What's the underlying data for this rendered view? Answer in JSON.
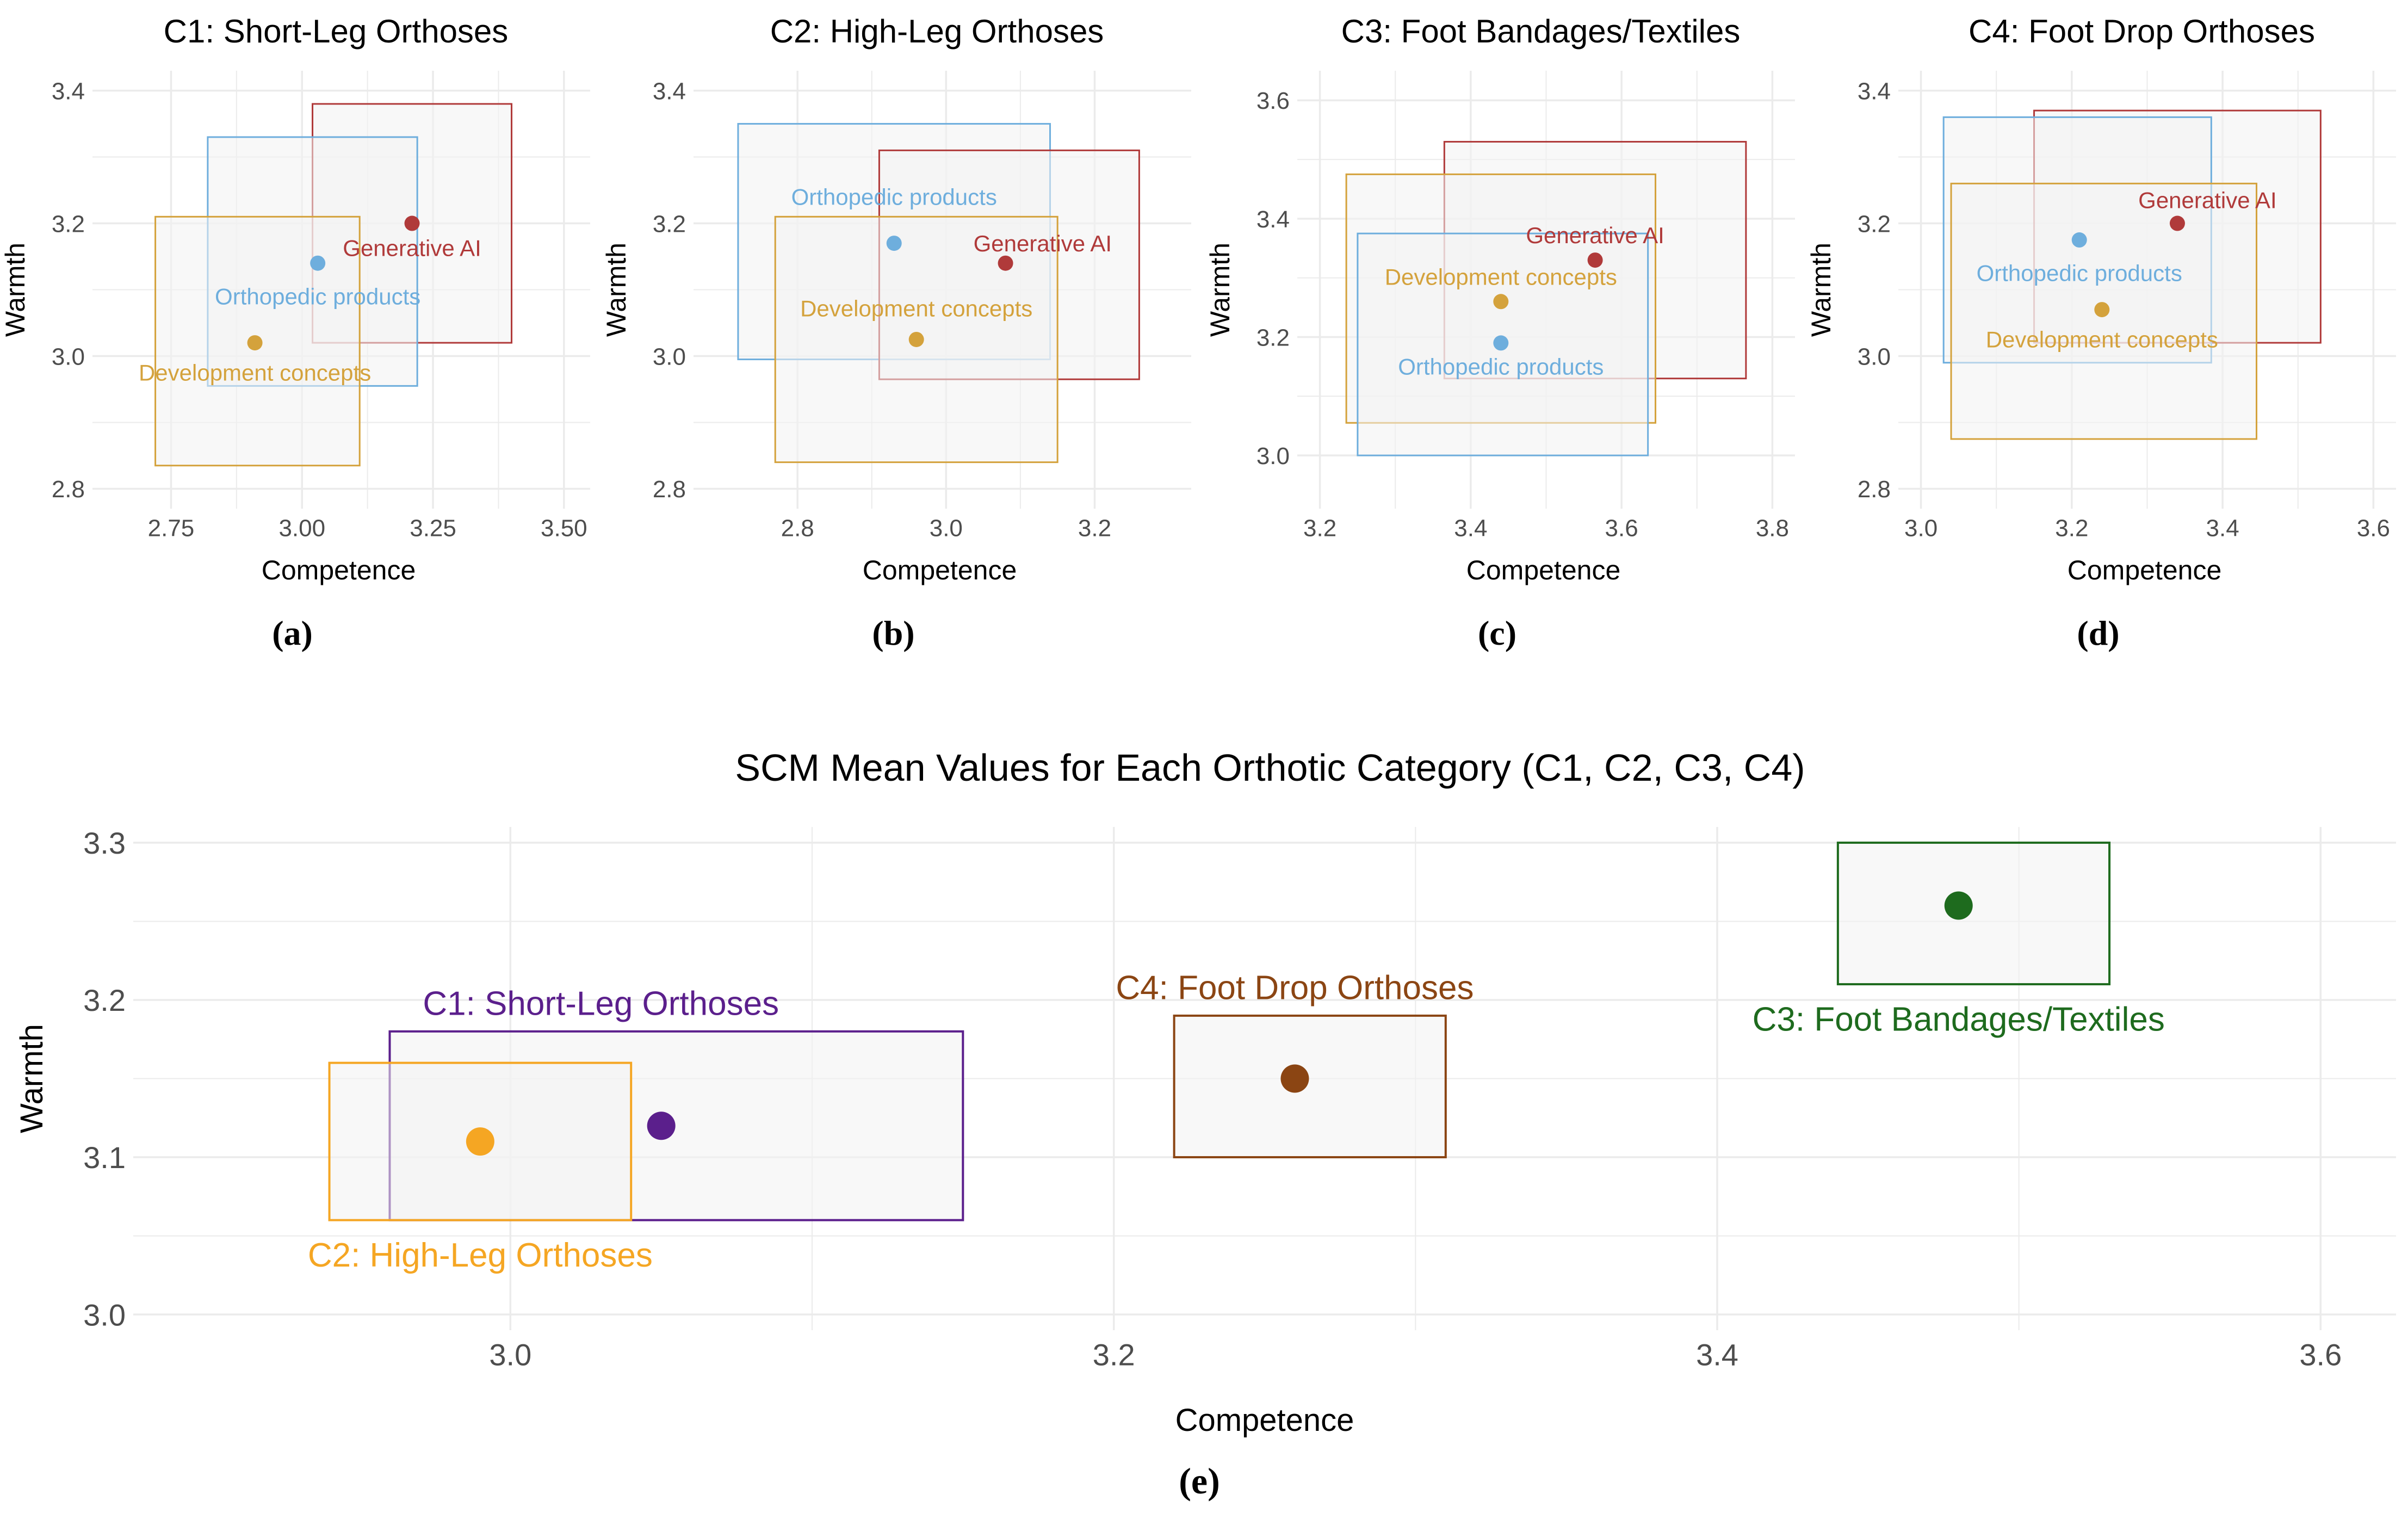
{
  "colors": {
    "generative_ai": "#B03A3A",
    "orthopedic": "#6EAEDD",
    "development": "#D4A23C",
    "c1": "#5B1F8C",
    "c2": "#F5A623",
    "c3": "#1E6B1E",
    "c4": "#8B4513",
    "box_fill": "#f2f2f2",
    "grid": "#ebebeb",
    "axis_text": "#4d4d4d"
  },
  "chart_data": [
    {
      "type": "scatter",
      "panel_label": "(a)",
      "title": "C1: Short-Leg Orthoses",
      "xlabel": "Competence",
      "ylabel": "Warmth",
      "xlim": [
        2.6,
        3.55
      ],
      "ylim": [
        2.77,
        3.43
      ],
      "xticks": [
        2.75,
        3.0,
        3.25,
        3.5
      ],
      "xtick_labels": [
        "2.75",
        "3.00",
        "3.25",
        "3.50"
      ],
      "yticks": [
        2.8,
        3.0,
        3.2,
        3.4
      ],
      "ytick_labels": [
        "2.8",
        "3.0",
        "3.2",
        "3.4"
      ],
      "series": [
        {
          "name": "Generative AI",
          "color_key": "generative_ai",
          "x": 3.21,
          "y": 3.2,
          "box": [
            3.02,
            3.4,
            3.02,
            3.38
          ],
          "label_dx": 0,
          "label_dy": -0.037
        },
        {
          "name": "Orthopedic products",
          "color_key": "orthopedic",
          "x": 3.03,
          "y": 3.14,
          "box": [
            2.82,
            3.22,
            2.955,
            3.33
          ],
          "label_dx": 0,
          "label_dy": -0.05
        },
        {
          "name": "Development concepts",
          "color_key": "development",
          "x": 2.91,
          "y": 3.02,
          "box": [
            2.72,
            3.11,
            2.835,
            3.21
          ],
          "label_dx": 0,
          "label_dy": -0.045
        }
      ]
    },
    {
      "type": "scatter",
      "panel_label": "(b)",
      "title": "C2: High-Leg Orthoses",
      "xlabel": "Competence",
      "ylabel": "Warmth",
      "xlim": [
        2.66,
        3.33
      ],
      "ylim": [
        2.77,
        3.43
      ],
      "xticks": [
        2.8,
        3.0,
        3.2
      ],
      "xtick_labels": [
        "2.8",
        "3.0",
        "3.2"
      ],
      "yticks": [
        2.8,
        3.0,
        3.2,
        3.4
      ],
      "ytick_labels": [
        "2.8",
        "3.0",
        "3.2",
        "3.4"
      ],
      "series": [
        {
          "name": "Orthopedic products",
          "color_key": "orthopedic",
          "x": 2.93,
          "y": 3.17,
          "box": [
            2.72,
            3.14,
            2.995,
            3.35
          ],
          "label_dx": 0,
          "label_dy": 0.07
        },
        {
          "name": "Generative AI",
          "color_key": "generative_ai",
          "x": 3.08,
          "y": 3.14,
          "box": [
            2.91,
            3.26,
            2.965,
            3.31
          ],
          "label_dx": 0.05,
          "label_dy": 0.03
        },
        {
          "name": "Development concepts",
          "color_key": "development",
          "x": 2.96,
          "y": 3.025,
          "box": [
            2.77,
            3.15,
            2.84,
            3.21
          ],
          "label_dx": 0,
          "label_dy": 0.047
        }
      ]
    },
    {
      "type": "scatter",
      "panel_label": "(c)",
      "title": "C3: Foot Bandages/Textiles",
      "xlabel": "Competence",
      "ylabel": "Warmth",
      "xlim": [
        3.17,
        3.83
      ],
      "ylim": [
        2.91,
        3.65
      ],
      "xticks": [
        3.2,
        3.4,
        3.6,
        3.8
      ],
      "xtick_labels": [
        "3.2",
        "3.4",
        "3.6",
        "3.8"
      ],
      "yticks": [
        3.0,
        3.2,
        3.4,
        3.6
      ],
      "ytick_labels": [
        "3.0",
        "3.2",
        "3.4",
        "3.6"
      ],
      "series": [
        {
          "name": "Generative AI",
          "color_key": "generative_ai",
          "x": 3.565,
          "y": 3.33,
          "box": [
            3.365,
            3.765,
            3.13,
            3.53
          ],
          "label_dx": 0,
          "label_dy": 0.042
        },
        {
          "name": "Development concepts",
          "color_key": "development",
          "x": 3.44,
          "y": 3.26,
          "box": [
            3.235,
            3.645,
            3.055,
            3.475
          ],
          "label_dx": 0,
          "label_dy": 0.042
        },
        {
          "name": "Orthopedic products",
          "color_key": "orthopedic",
          "x": 3.44,
          "y": 3.19,
          "box": [
            3.25,
            3.635,
            3.0,
            3.375
          ],
          "label_dx": 0,
          "label_dy": -0.04
        }
      ]
    },
    {
      "type": "scatter",
      "panel_label": "(d)",
      "title": "C4: Foot Drop Orthoses",
      "xlabel": "Competence",
      "ylabel": "Warmth",
      "xlim": [
        2.97,
        3.63
      ],
      "ylim": [
        2.77,
        3.43
      ],
      "xticks": [
        3.0,
        3.2,
        3.4,
        3.6
      ],
      "xtick_labels": [
        "3.0",
        "3.2",
        "3.4",
        "3.6"
      ],
      "yticks": [
        2.8,
        3.0,
        3.2,
        3.4
      ],
      "ytick_labels": [
        "2.8",
        "3.0",
        "3.2",
        "3.4"
      ],
      "series": [
        {
          "name": "Generative AI",
          "color_key": "generative_ai",
          "x": 3.34,
          "y": 3.2,
          "box": [
            3.15,
            3.53,
            3.02,
            3.37
          ],
          "label_dx": 0.04,
          "label_dy": 0.035
        },
        {
          "name": "Orthopedic products",
          "color_key": "orthopedic",
          "x": 3.21,
          "y": 3.175,
          "box": [
            3.03,
            3.385,
            2.99,
            3.36
          ],
          "label_dx": 0,
          "label_dy": -0.05
        },
        {
          "name": "Development concepts",
          "color_key": "development",
          "x": 3.24,
          "y": 3.07,
          "box": [
            3.04,
            3.445,
            2.875,
            3.26
          ],
          "label_dx": 0,
          "label_dy": -0.045
        }
      ]
    },
    {
      "type": "scatter",
      "panel_label": "(e)",
      "title": "SCM Mean Values for Each Orthotic Category (C1, C2, C3, C4)",
      "xlabel": "Competence",
      "ylabel": "Warmth",
      "xlim": [
        2.875,
        3.625
      ],
      "ylim": [
        2.99,
        3.31
      ],
      "xticks": [
        3.0,
        3.2,
        3.4,
        3.6
      ],
      "xtick_labels": [
        "3.0",
        "3.2",
        "3.4",
        "3.6"
      ],
      "yticks": [
        3.0,
        3.1,
        3.2,
        3.3
      ],
      "ytick_labels": [
        "3.0",
        "3.1",
        "3.2",
        "3.3"
      ],
      "series": [
        {
          "name": "C1: Short-Leg Orthoses",
          "color_key": "c1",
          "x": 3.05,
          "y": 3.12,
          "box": [
            2.96,
            3.15,
            3.06,
            3.18
          ],
          "label_dx": -0.02,
          "label_dy": 0.078
        },
        {
          "name": "C2: High-Leg Orthoses",
          "color_key": "c2",
          "x": 2.99,
          "y": 3.11,
          "box": [
            2.94,
            3.04,
            3.06,
            3.16
          ],
          "label_dx": 0,
          "label_dy": -0.072
        },
        {
          "name": "C4: Foot Drop Orthoses",
          "color_key": "c4",
          "x": 3.26,
          "y": 3.15,
          "box": [
            3.22,
            3.31,
            3.1,
            3.19
          ],
          "label_dx": 0,
          "label_dy": 0.058
        },
        {
          "name": "C3: Foot Bandages/Textiles",
          "color_key": "c3",
          "x": 3.48,
          "y": 3.26,
          "box": [
            3.44,
            3.53,
            3.21,
            3.3
          ],
          "label_dx": 0,
          "label_dy": -0.072
        }
      ]
    }
  ]
}
